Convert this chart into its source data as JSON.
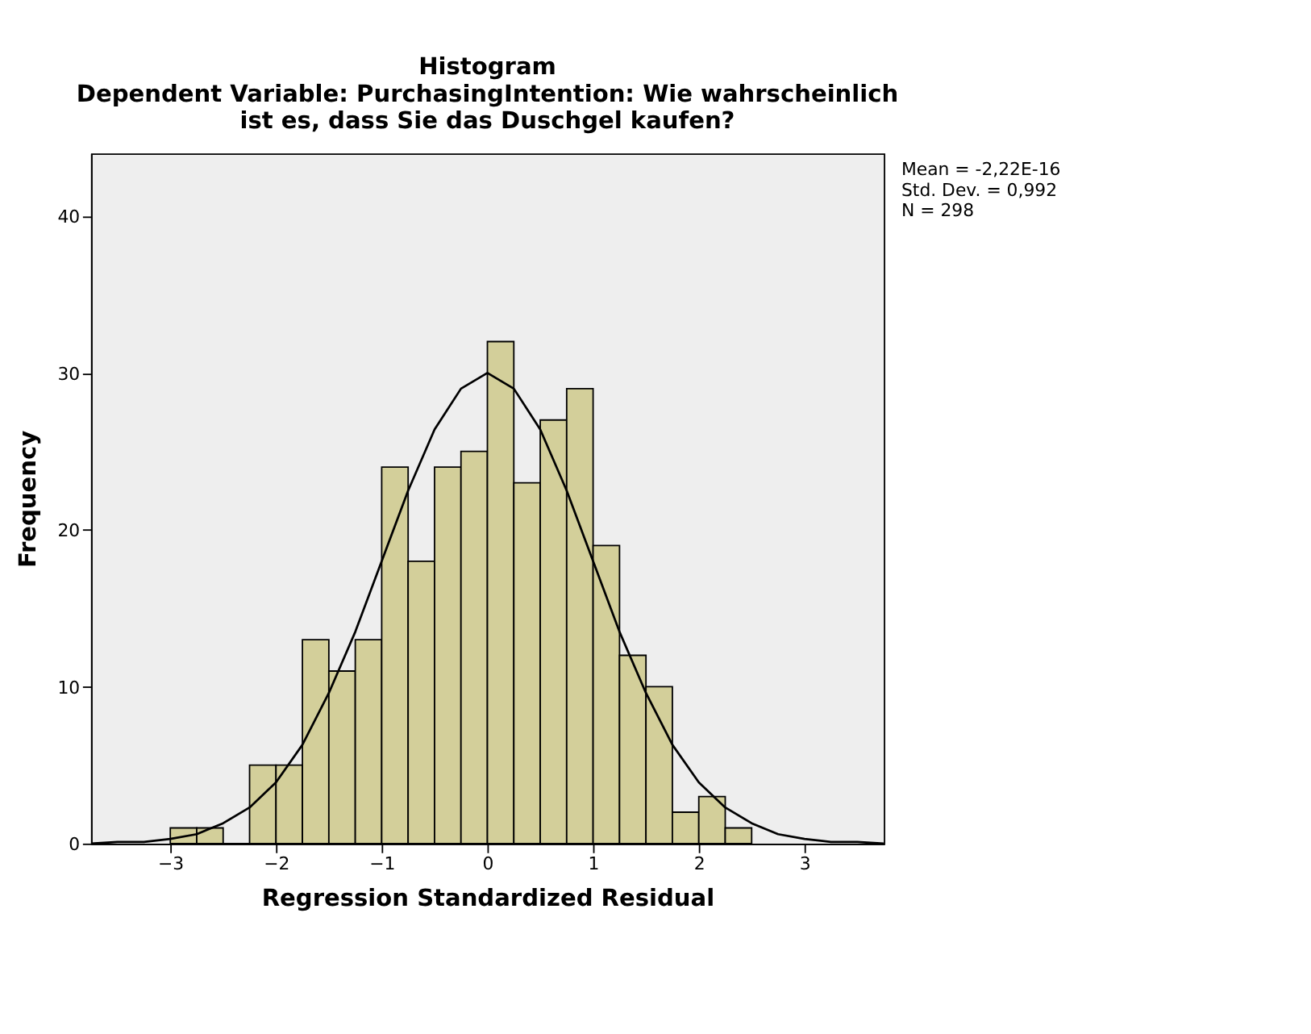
{
  "chart_data": {
    "type": "histogram",
    "title": "Histogram",
    "subtitle": "Dependent Variable: PurchasingIntention: Wie wahrscheinlich ist es, dass Sie das Duschgel kaufen?",
    "xlabel": "Regression Standardized Residual",
    "ylabel": "Frequency",
    "bins": [
      -3.0,
      -2.75,
      -2.5,
      -2.25,
      -2.0,
      -1.75,
      -1.5,
      -1.25,
      -1.0,
      -0.75,
      -0.5,
      -0.25,
      0.0,
      0.25,
      0.5,
      0.75,
      1.0,
      1.25,
      1.5,
      1.75,
      2.0,
      2.25,
      2.5
    ],
    "values": [
      1,
      1,
      0,
      5,
      5,
      13,
      11,
      13,
      24,
      18,
      24,
      25,
      32,
      23,
      27,
      29,
      19,
      12,
      10,
      2,
      3,
      1
    ],
    "color": "#d3cf9a",
    "series": [
      {
        "type": "line",
        "color": "#000000",
        "x": [
          -3.75,
          -3.5,
          -3.25,
          -3.0,
          -2.75,
          -2.5,
          -2.25,
          -2.0,
          -1.75,
          -1.5,
          -1.25,
          -1.0,
          -0.75,
          -0.5,
          -0.25,
          0.0,
          0.25,
          0.5,
          0.75,
          1.0,
          1.25,
          1.5,
          1.75,
          2.0,
          2.25,
          2.5,
          2.75,
          3.0,
          3.25,
          3.5,
          3.75
        ],
        "values": [
          0,
          0.1,
          0.1,
          0.3,
          0.6,
          1.3,
          2.3,
          3.9,
          6.3,
          9.6,
          13.5,
          18,
          22.5,
          26.4,
          29,
          30,
          29,
          26.4,
          22.5,
          18,
          13.5,
          9.6,
          6.3,
          3.9,
          2.3,
          1.3,
          0.6,
          0.3,
          0.1,
          0.1,
          0
        ]
      }
    ],
    "xlim": [
      -3.75,
      3.75
    ],
    "ylim": [
      0,
      44
    ],
    "xticks": [
      -3,
      -2,
      -1,
      0,
      1,
      2,
      3
    ],
    "yticks": [
      0,
      10,
      20,
      30,
      40
    ],
    "grid": false,
    "annotations": [
      "Mean = -2,22E-16",
      "Std. Dev. = 0,992",
      "N = 298"
    ]
  }
}
